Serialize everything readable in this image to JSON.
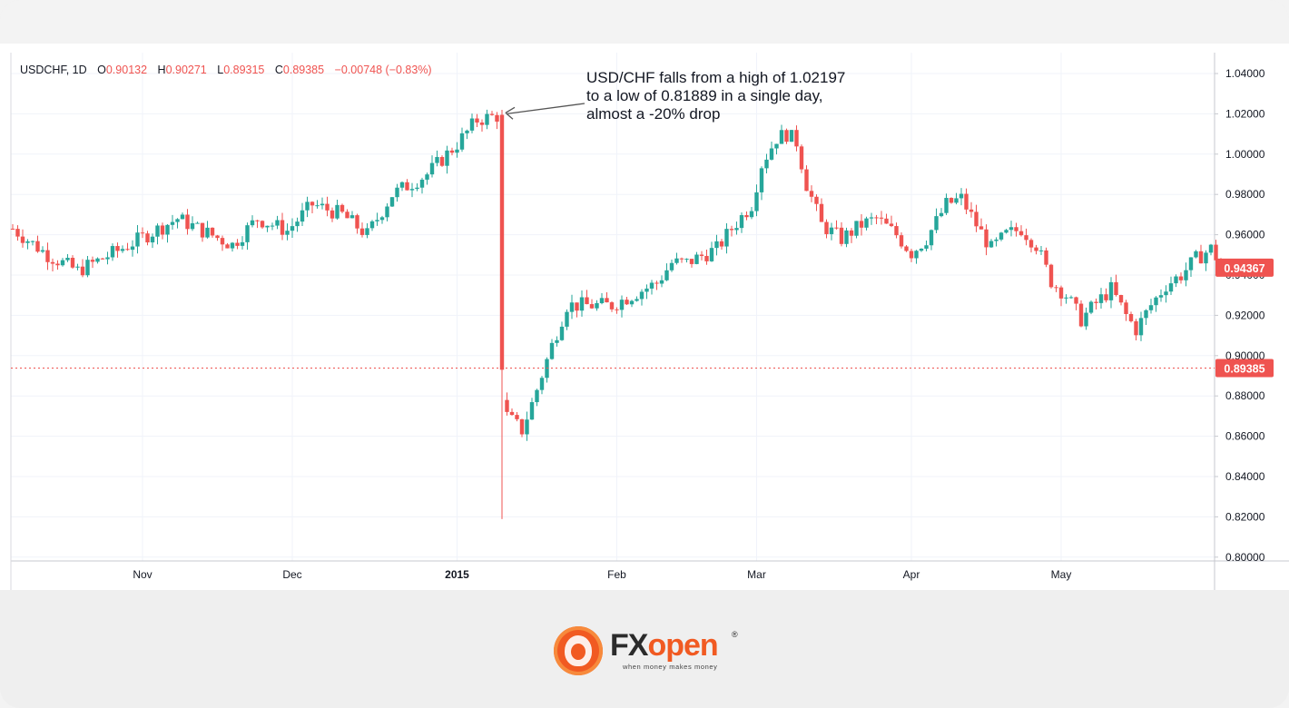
{
  "chart_data": {
    "type": "candlestick",
    "symbol": "USDCHF",
    "interval": "1D",
    "ohlc_readout": {
      "open_label": "O",
      "open": "0.90132",
      "high_label": "H",
      "high": "0.90271",
      "low_label": "L",
      "low": "0.89315",
      "close_label": "C",
      "close": "0.89385",
      "change": "−0.00748",
      "change_pct": "(−0.83%)"
    },
    "ylim": [
      0.8,
      1.05
    ],
    "y_ticks": [
      "1.04000",
      "1.02000",
      "1.00000",
      "0.98000",
      "0.96000",
      "0.94000",
      "0.92000",
      "0.90000",
      "0.88000",
      "0.86000",
      "0.84000",
      "0.82000",
      "0.80000"
    ],
    "x_ticks": [
      {
        "label": "Nov",
        "day": 26,
        "bold": false
      },
      {
        "label": "Dec",
        "day": 56,
        "bold": false
      },
      {
        "label": "2015",
        "day": 89,
        "bold": true
      },
      {
        "label": "Feb",
        "day": 121,
        "bold": false
      },
      {
        "label": "Mar",
        "day": 149,
        "bold": false
      },
      {
        "label": "Apr",
        "day": 180,
        "bold": false
      },
      {
        "label": "May",
        "day": 210,
        "bold": false
      }
    ],
    "price_labels": [
      {
        "value": 0.94367,
        "text": "0.94367",
        "color": "#ef5350"
      },
      {
        "value": 0.89385,
        "text": "0.89385",
        "color": "#ef5350",
        "dotted_line": true
      }
    ],
    "annotation": {
      "lines": [
        "USD/CHF falls from a high of 1.02197",
        "to a low of 0.81889 in a single day,",
        "almost a -20% drop"
      ],
      "arrow_to_value": 1.0205
    },
    "colors": {
      "up": "#26a69a",
      "down": "#ef5350",
      "grid": "#f0f3fa",
      "axis_text": "#131722"
    },
    "anchors": [
      [
        0,
        0.963
      ],
      [
        7,
        0.95
      ],
      [
        13,
        0.942
      ],
      [
        21,
        0.952
      ],
      [
        27,
        0.96
      ],
      [
        33,
        0.968
      ],
      [
        38,
        0.962
      ],
      [
        44,
        0.955
      ],
      [
        49,
        0.968
      ],
      [
        55,
        0.962
      ],
      [
        60,
        0.975
      ],
      [
        66,
        0.97
      ],
      [
        71,
        0.96
      ],
      [
        76,
        0.98
      ],
      [
        83,
        0.99
      ],
      [
        89,
        1.005
      ],
      [
        93,
        1.017
      ],
      [
        97,
        1.019
      ],
      [
        98,
        0.893
      ],
      [
        99,
        0.87
      ],
      [
        102,
        0.863
      ],
      [
        104,
        0.876
      ],
      [
        108,
        0.905
      ],
      [
        111,
        0.925
      ],
      [
        116,
        0.925
      ],
      [
        120,
        0.925
      ],
      [
        124,
        0.93
      ],
      [
        129,
        0.936
      ],
      [
        132,
        0.946
      ],
      [
        135,
        0.946
      ],
      [
        141,
        0.953
      ],
      [
        144,
        0.963
      ],
      [
        148,
        0.975
      ],
      [
        150,
        0.995
      ],
      [
        153,
        1.008
      ],
      [
        155,
        1.01
      ],
      [
        157,
        1.006
      ],
      [
        159,
        0.985
      ],
      [
        162,
        0.965
      ],
      [
        166,
        0.958
      ],
      [
        170,
        0.965
      ],
      [
        173,
        0.968
      ],
      [
        177,
        0.96
      ],
      [
        180,
        0.951
      ],
      [
        183,
        0.958
      ],
      [
        187,
        0.975
      ],
      [
        190,
        0.978
      ],
      [
        193,
        0.965
      ],
      [
        196,
        0.953
      ],
      [
        199,
        0.96
      ],
      [
        202,
        0.963
      ],
      [
        205,
        0.955
      ],
      [
        208,
        0.937
      ],
      [
        211,
        0.93
      ],
      [
        214,
        0.918
      ],
      [
        217,
        0.926
      ],
      [
        220,
        0.933
      ],
      [
        223,
        0.92
      ],
      [
        225,
        0.913
      ],
      [
        228,
        0.925
      ],
      [
        231,
        0.935
      ],
      [
        234,
        0.94
      ],
      [
        237,
        0.948
      ],
      [
        240,
        0.953
      ],
      [
        242,
        0.945
      ]
    ],
    "drop_candle": {
      "day": 98,
      "open": 1.0195,
      "high": 1.02197,
      "close": 0.893,
      "low": 0.81889
    }
  },
  "brand": {
    "name_fx": "FX",
    "name_open": "open",
    "registered": "®",
    "tagline": "when money makes money"
  }
}
